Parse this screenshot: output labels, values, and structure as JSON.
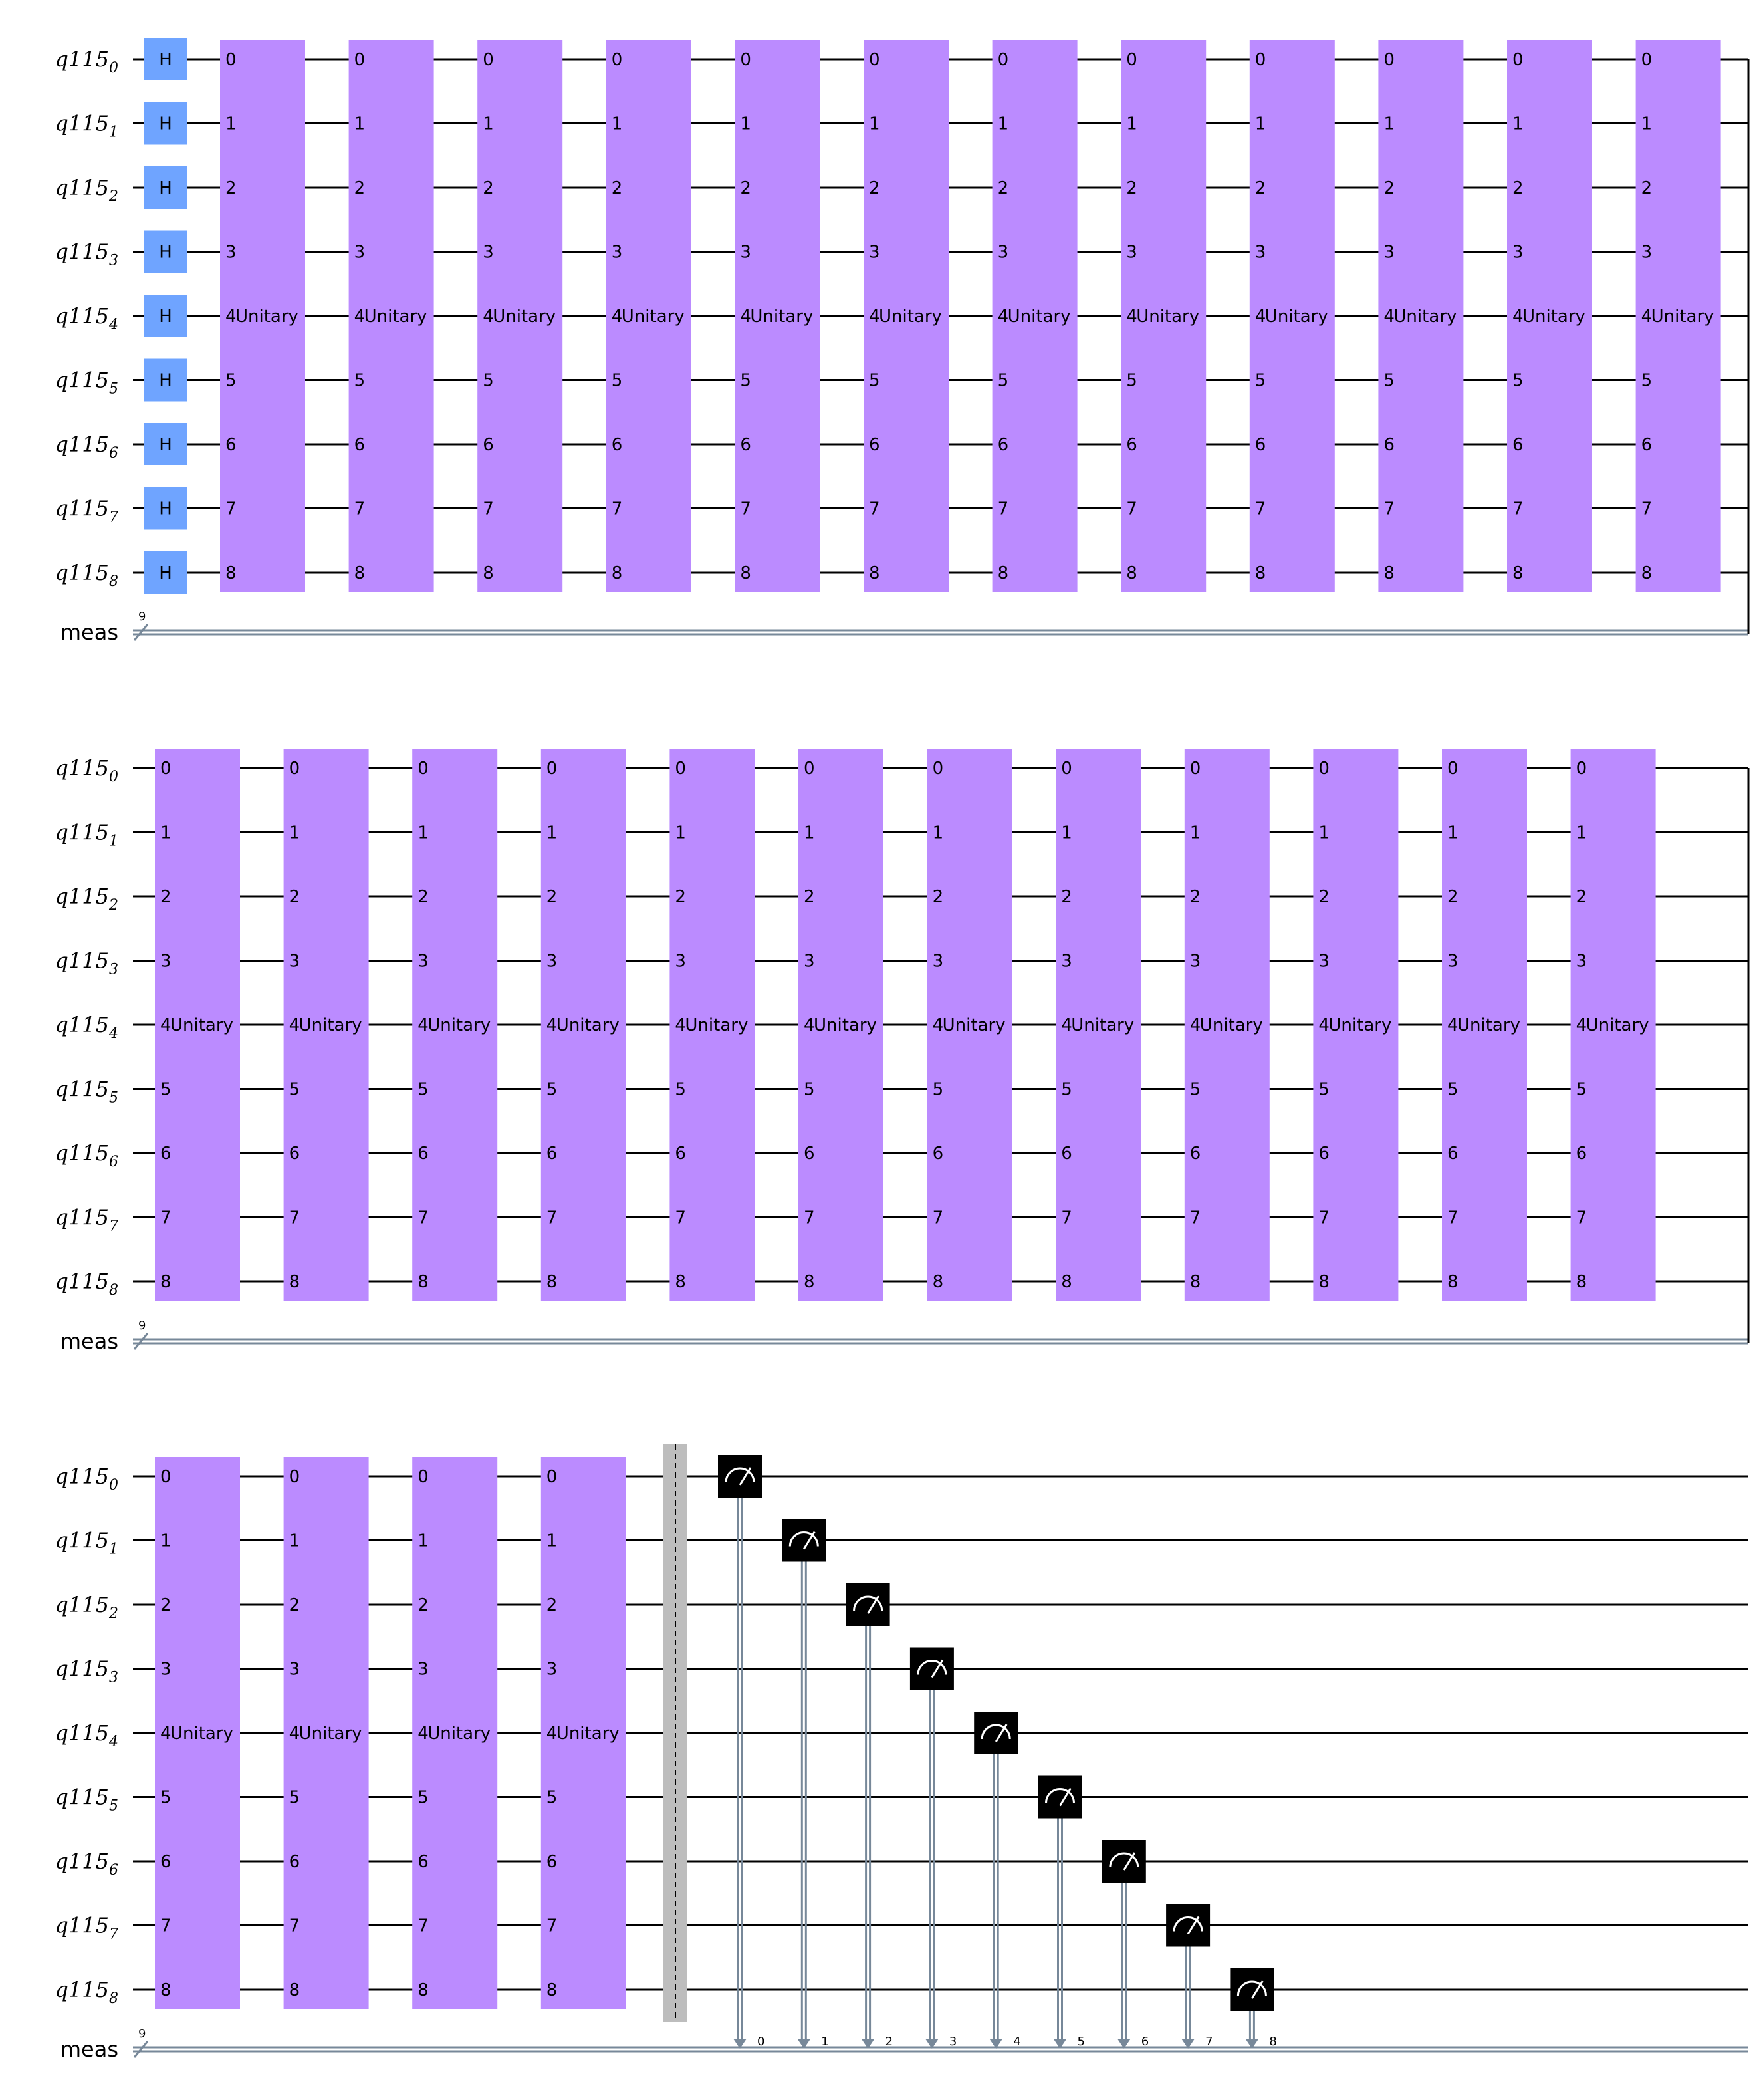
{
  "circuit": {
    "qreg": {
      "name": "q115",
      "size": 9
    },
    "creg": {
      "name": "meas",
      "size": 9,
      "width_label": "9"
    },
    "colors": {
      "unitary": "#bb8bff",
      "hadamard": "#6fa4ff",
      "measure": "#000000",
      "classical_wire": "#778899",
      "barrier": "#bdbdbd",
      "wire": "#000000"
    },
    "labels": {
      "hadamard": "H",
      "unitary": "Unitary",
      "unitary_prefix": "4"
    },
    "rows": [
      {
        "hadamard": true,
        "unitary_count": 12,
        "barrier": false,
        "measure": false
      },
      {
        "hadamard": false,
        "unitary_count": 12,
        "barrier": false,
        "measure": false
      },
      {
        "hadamard": false,
        "unitary_count": 4,
        "barrier": true,
        "measure": true
      }
    ]
  }
}
